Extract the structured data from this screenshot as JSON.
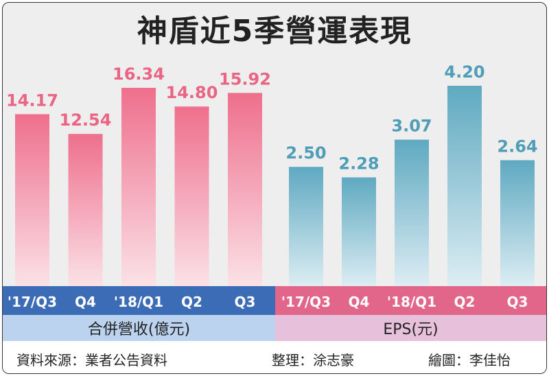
{
  "title": "神盾近5季營運表現",
  "colors": {
    "revenue_bar_top": "#ee6f8c",
    "revenue_bar_bottom": "#fbe1e7",
    "revenue_label": "#ea6483",
    "eps_bar_top": "#5fa9c1",
    "eps_bar_bottom": "#dcedf3",
    "eps_label": "#4f9db7",
    "revenue_axis_band": "#3c6cb5",
    "eps_axis_band": "#e2668a",
    "axis_text": "#ffffff"
  },
  "chart_data": [
    {
      "type": "bar",
      "categories": [
        "'17/Q3",
        "Q4",
        "'18/Q1",
        "Q2",
        "Q3"
      ],
      "values": [
        14.17,
        12.54,
        16.34,
        14.8,
        15.92
      ],
      "value_labels": [
        "14.17",
        "12.54",
        "16.34",
        "14.80",
        "15.92"
      ],
      "legend": "合併營收(億元)"
    },
    {
      "type": "bar",
      "categories": [
        "'17/Q3",
        "Q4",
        "'18/Q1",
        "Q2",
        "Q3"
      ],
      "values": [
        2.5,
        2.28,
        3.07,
        4.2,
        2.64
      ],
      "value_labels": [
        "2.50",
        "2.28",
        "3.07",
        "4.20",
        "2.64"
      ],
      "legend": "EPS(元)"
    }
  ],
  "footer": {
    "source": "資料來源：業者公告資料",
    "editor": "整理：涂志豪",
    "illustrator": "繪圖：李佳怡"
  }
}
